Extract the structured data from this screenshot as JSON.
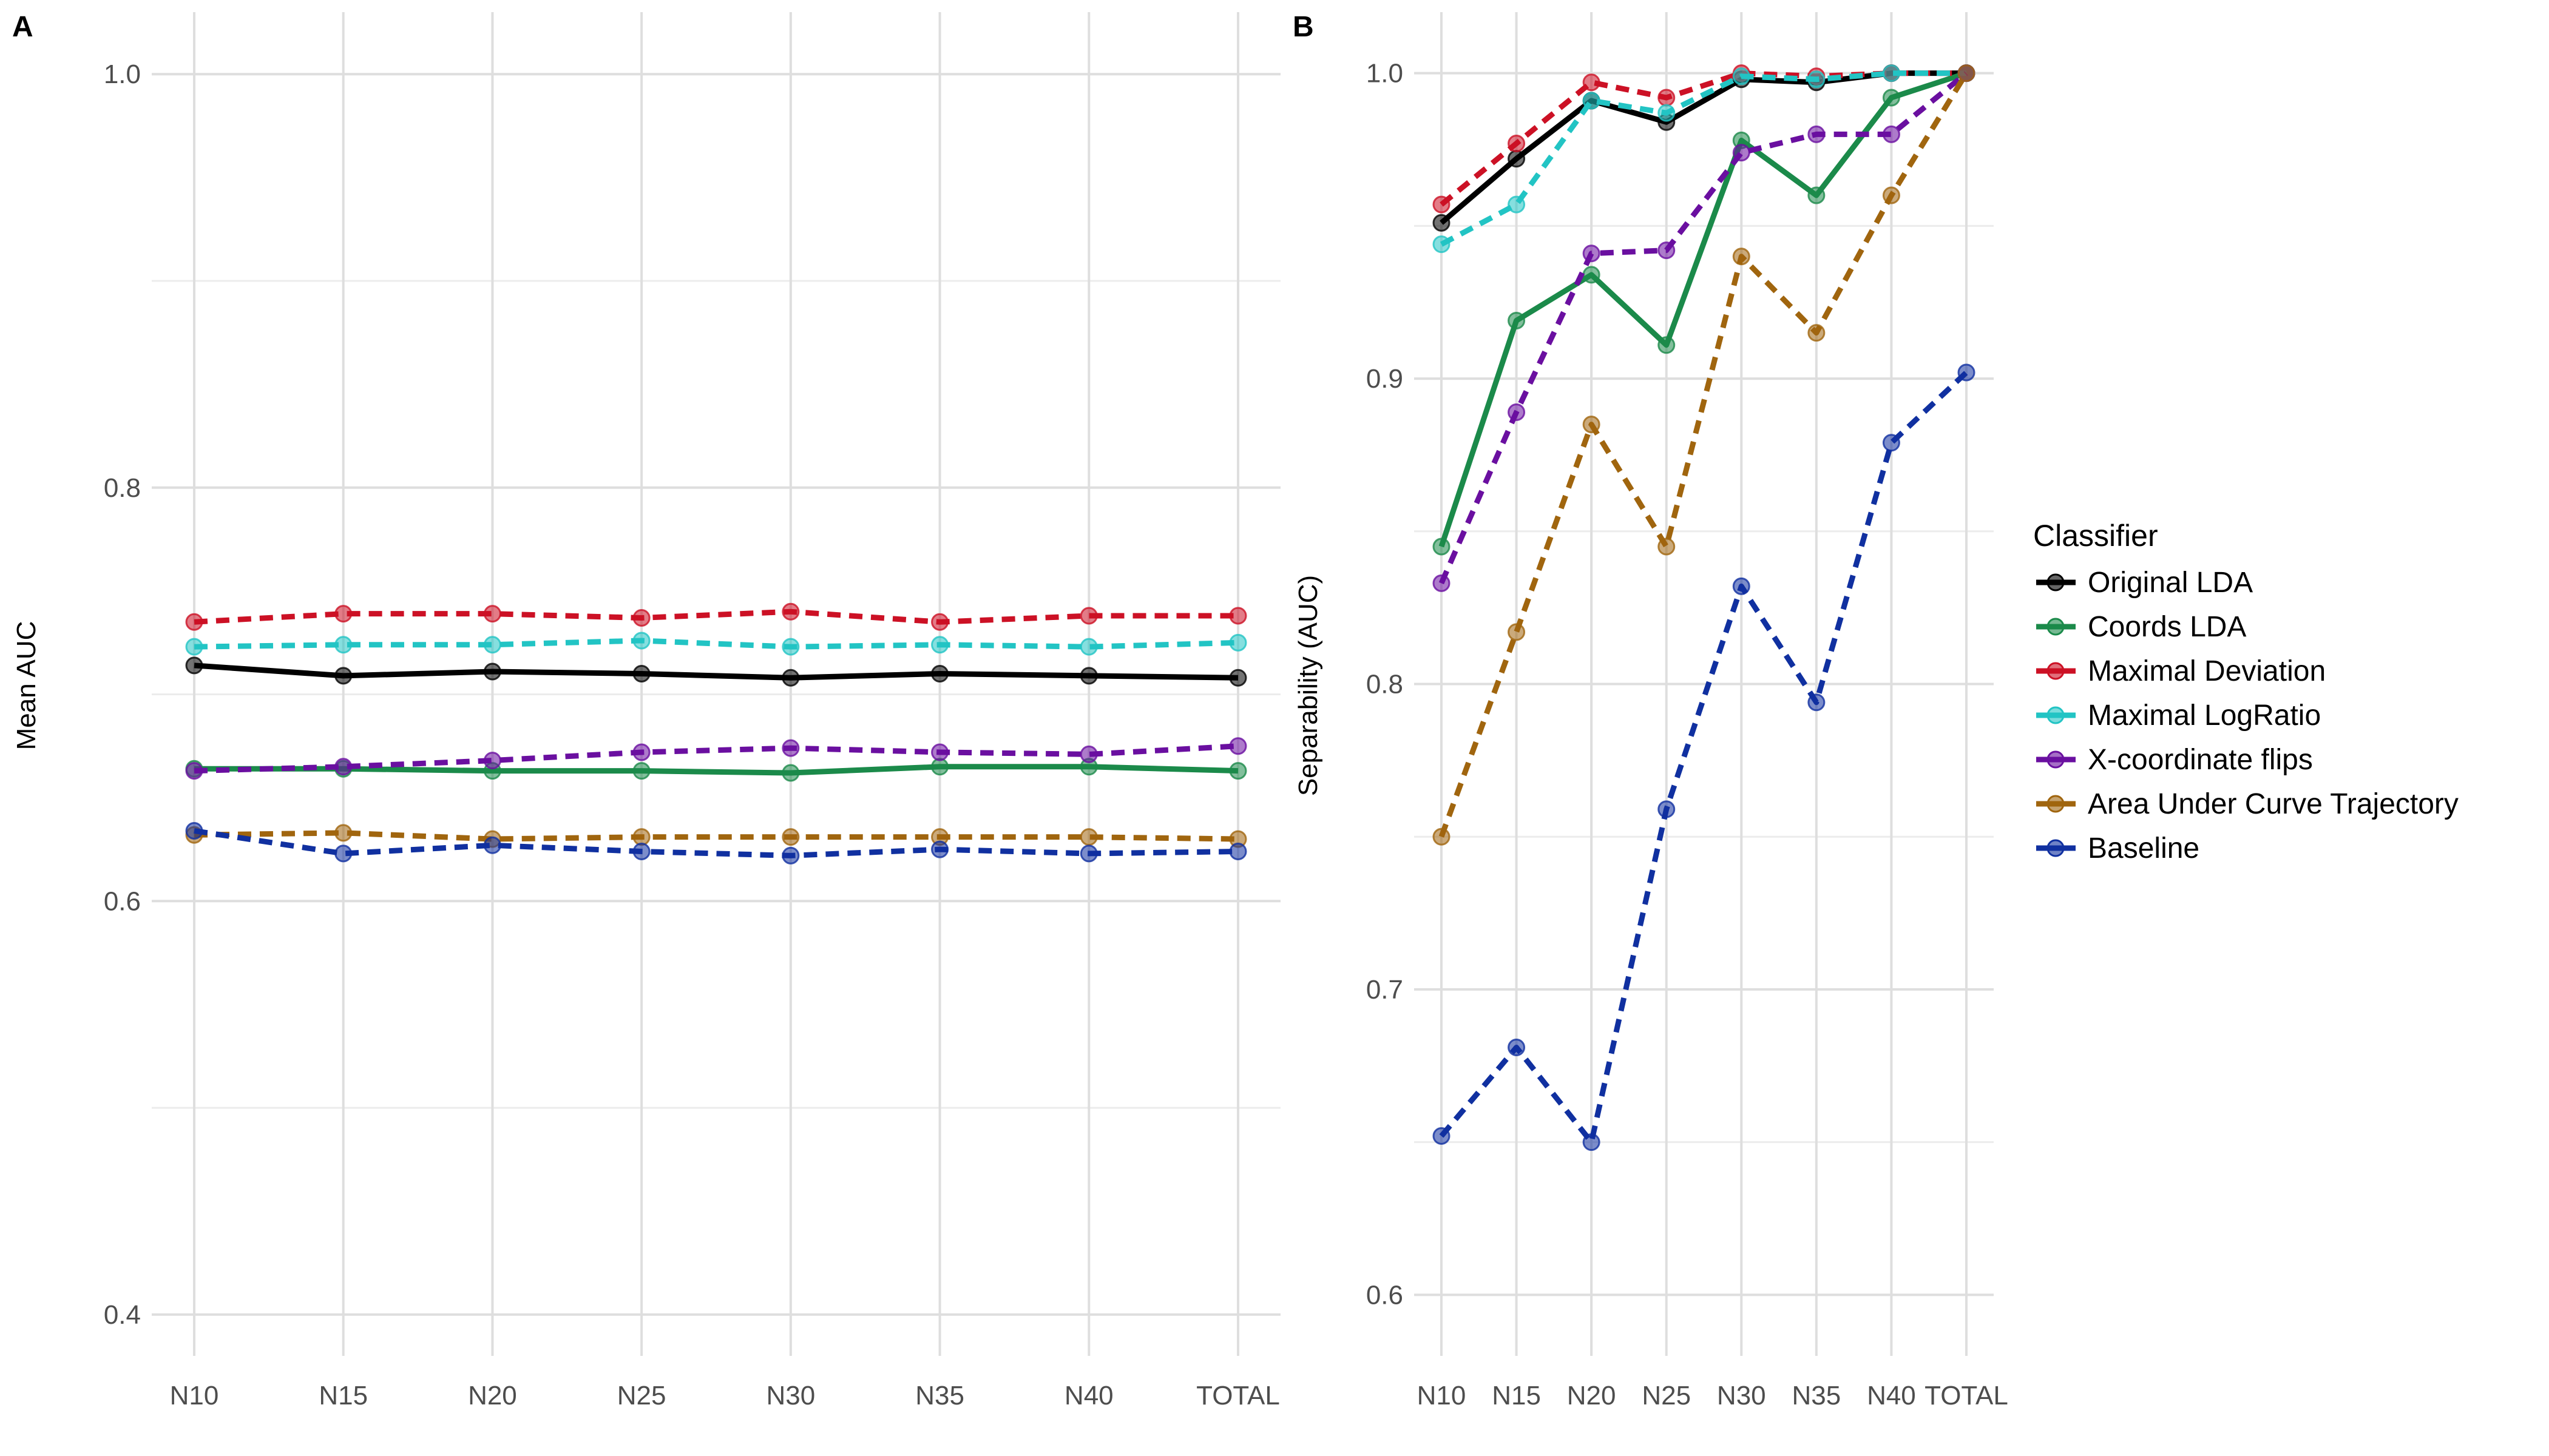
{
  "legend": {
    "title": "Classifier",
    "placement": "right"
  },
  "series_styles": [
    {
      "name": "Original LDA",
      "color": "#000000",
      "dash": "solid"
    },
    {
      "name": "Coords LDA",
      "color": "#1b8a4a",
      "dash": "solid"
    },
    {
      "name": "Maximal Deviation",
      "color": "#cc1125",
      "dash": "dashed"
    },
    {
      "name": "Maximal LogRatio",
      "color": "#22c4c4",
      "dash": "dashed"
    },
    {
      "name": "X-coordinate flips",
      "color": "#6a0fa0",
      "dash": "dashed"
    },
    {
      "name": "Area Under Curve Trajectory",
      "color": "#a0650e",
      "dash": "dashed"
    },
    {
      "name": "Baseline",
      "color": "#1030a0",
      "dash": "dashed"
    }
  ],
  "chart_data": [
    {
      "panel": "A",
      "type": "line",
      "title": "",
      "xlabel": "",
      "ylabel": "Mean AUC",
      "categories": [
        "N10",
        "N15",
        "N20",
        "N25",
        "N30",
        "N35",
        "N40",
        "TOTAL"
      ],
      "ylim": [
        0.38,
        1.03
      ],
      "yticks": [
        0.4,
        0.6,
        0.8,
        1.0
      ],
      "ytick_labels": [
        "0.4",
        "0.6",
        "0.8",
        "1.0"
      ],
      "grid": true,
      "series": [
        {
          "name": "Original LDA",
          "values": [
            0.714,
            0.709,
            0.711,
            0.71,
            0.708,
            0.71,
            0.709,
            0.708
          ]
        },
        {
          "name": "Coords LDA",
          "values": [
            0.664,
            0.664,
            0.663,
            0.663,
            0.662,
            0.665,
            0.665,
            0.663
          ]
        },
        {
          "name": "Maximal Deviation",
          "values": [
            0.735,
            0.739,
            0.739,
            0.737,
            0.74,
            0.735,
            0.738,
            0.738
          ]
        },
        {
          "name": "Maximal LogRatio",
          "values": [
            0.723,
            0.724,
            0.724,
            0.726,
            0.723,
            0.724,
            0.723,
            0.725
          ]
        },
        {
          "name": "X-coordinate flips",
          "values": [
            0.663,
            0.665,
            0.668,
            0.672,
            0.674,
            0.672,
            0.671,
            0.675
          ]
        },
        {
          "name": "Area Under Curve Trajectory",
          "values": [
            0.632,
            0.633,
            0.63,
            0.631,
            0.631,
            0.631,
            0.631,
            0.63
          ]
        },
        {
          "name": "Baseline",
          "values": [
            0.634,
            0.623,
            0.627,
            0.624,
            0.622,
            0.625,
            0.623,
            0.624
          ]
        }
      ]
    },
    {
      "panel": "B",
      "type": "line",
      "title": "",
      "xlabel": "",
      "ylabel": "Separability (AUC)",
      "categories": [
        "N10",
        "N15",
        "N20",
        "N25",
        "N30",
        "N35",
        "N40",
        "TOTAL"
      ],
      "ylim": [
        0.58,
        1.02
      ],
      "yticks": [
        0.6,
        0.7,
        0.8,
        0.9,
        1.0
      ],
      "ytick_labels": [
        "0.6",
        "0.7",
        "0.8",
        "0.9",
        "1.0"
      ],
      "grid": true,
      "series": [
        {
          "name": "Original LDA",
          "values": [
            0.951,
            0.972,
            0.991,
            0.984,
            0.998,
            0.997,
            1.0,
            1.0
          ]
        },
        {
          "name": "Coords LDA",
          "values": [
            0.845,
            0.919,
            0.934,
            0.911,
            0.978,
            0.96,
            0.992,
            1.0
          ]
        },
        {
          "name": "Maximal Deviation",
          "values": [
            0.957,
            0.977,
            0.997,
            0.992,
            1.0,
            0.999,
            1.0,
            1.0
          ]
        },
        {
          "name": "Maximal LogRatio",
          "values": [
            0.944,
            0.957,
            0.991,
            0.987,
            0.999,
            0.998,
            1.0,
            1.0
          ]
        },
        {
          "name": "X-coordinate flips",
          "values": [
            0.833,
            0.889,
            0.941,
            0.942,
            0.974,
            0.98,
            0.98,
            1.0
          ]
        },
        {
          "name": "Area Under Curve Trajectory",
          "values": [
            0.75,
            0.817,
            0.885,
            0.845,
            0.94,
            0.915,
            0.96,
            1.0
          ]
        },
        {
          "name": "Baseline",
          "values": [
            0.652,
            0.681,
            0.65,
            0.759,
            0.832,
            0.794,
            0.879,
            0.902
          ]
        }
      ]
    }
  ]
}
